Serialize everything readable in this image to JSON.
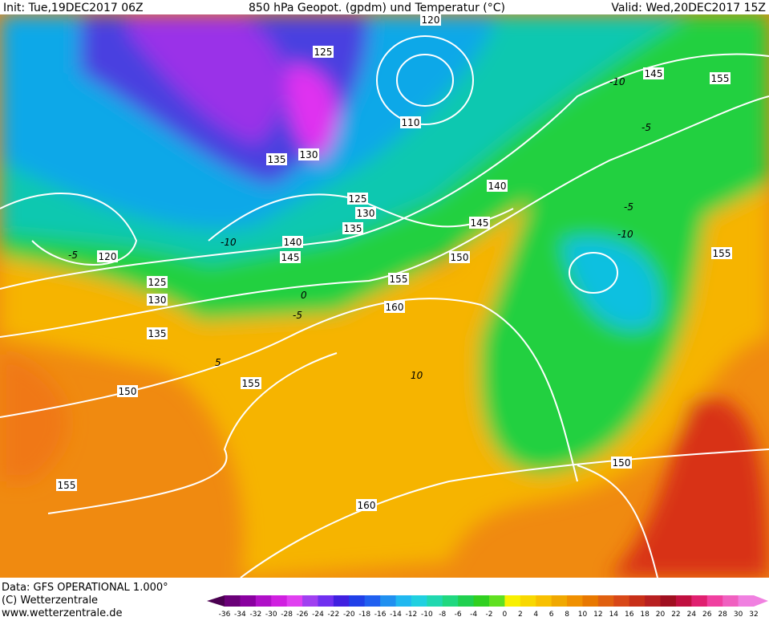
{
  "header": {
    "init": "Init: Tue,19DEC2017 06Z",
    "title": "850 hPa Geopot. (gpdm) und Temperatur (°C)",
    "valid": "Valid: Wed,20DEC2017 15Z"
  },
  "footer": {
    "data": "Data: GFS OPERATIONAL 1.000°",
    "copyright": "(C) Wetterzentrale",
    "url": "www.wetterzentrale.de"
  },
  "colorbar": {
    "labels": [
      -36,
      -34,
      -32,
      -30,
      -28,
      -26,
      -24,
      -22,
      -20,
      -18,
      -16,
      -14,
      -12,
      -10,
      -8,
      -6,
      -4,
      -2,
      0,
      2,
      4,
      6,
      8,
      10,
      12,
      14,
      16,
      18,
      20,
      22,
      24,
      26,
      28,
      30,
      32
    ]
  },
  "contour_labels": [
    "120",
    "125",
    "145",
    "155",
    "110",
    "140",
    "135",
    "130",
    "125",
    "130",
    "135",
    "145",
    "140",
    "145",
    "150",
    "155",
    "120",
    "125",
    "130",
    "155",
    "160",
    "135",
    "155",
    "150",
    "155",
    "160",
    "150"
  ],
  "temperature_labels": [
    "-10",
    "-5",
    "-5",
    "-10",
    "-10",
    "-5",
    "0",
    "-5",
    "5",
    "10"
  ]
}
